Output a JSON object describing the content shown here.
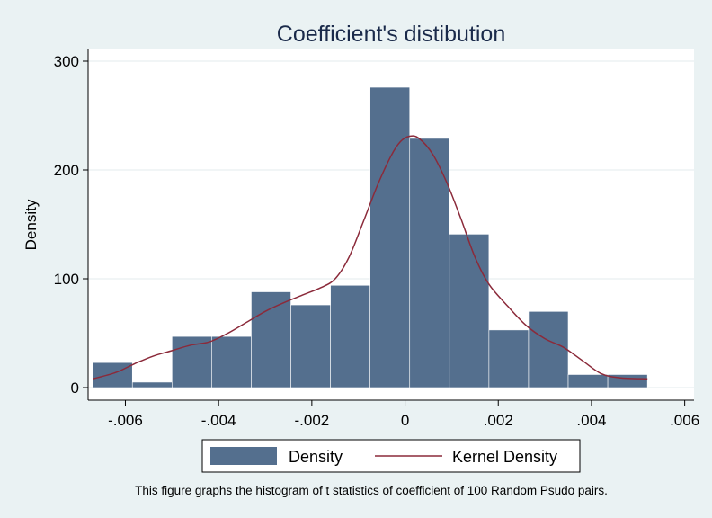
{
  "chart_data": {
    "type": "bar",
    "title": "Coefficient's distibution",
    "ylabel": "Density",
    "xlabel": "",
    "xlim": [
      -0.0068,
      0.0062
    ],
    "ylim": [
      0,
      300
    ],
    "x_ticks": [
      -0.006,
      -0.004,
      -0.002,
      0,
      0.002,
      0.004,
      0.006
    ],
    "x_tick_labels": [
      "-.006",
      "-.004",
      "-.002",
      "0",
      ".002",
      ".004",
      ".006"
    ],
    "y_ticks": [
      0,
      100,
      200,
      300
    ],
    "y_tick_labels": [
      "0",
      "100",
      "200",
      "300"
    ],
    "grid": "horizontal",
    "legend": {
      "placement": "bottom",
      "entries": [
        "Density",
        "Kernel Density"
      ]
    },
    "colors": {
      "bars": "#546f8e",
      "kernel": "#8b2a3a",
      "background": "#eaf2f3",
      "plot": "#ffffff"
    },
    "series": [
      {
        "name": "Density",
        "type": "histogram",
        "bins": [
          {
            "x0": -0.0067,
            "x1": -0.00585,
            "value": 23
          },
          {
            "x0": -0.00585,
            "x1": -0.005,
            "value": 5
          },
          {
            "x0": -0.005,
            "x1": -0.00415,
            "value": 47
          },
          {
            "x0": -0.00415,
            "x1": -0.0033,
            "value": 47
          },
          {
            "x0": -0.0033,
            "x1": -0.00245,
            "value": 88
          },
          {
            "x0": -0.00245,
            "x1": -0.0016,
            "value": 76
          },
          {
            "x0": -0.0016,
            "x1": -0.00075,
            "value": 94
          },
          {
            "x0": -0.00075,
            "x1": 0.0001,
            "value": 276
          },
          {
            "x0": 0.0001,
            "x1": 0.00095,
            "value": 229
          },
          {
            "x0": 0.00095,
            "x1": 0.0018,
            "value": 141
          },
          {
            "x0": 0.0018,
            "x1": 0.00265,
            "value": 53
          },
          {
            "x0": 0.00265,
            "x1": 0.0035,
            "value": 70
          },
          {
            "x0": 0.0035,
            "x1": 0.00435,
            "value": 12
          },
          {
            "x0": 0.00435,
            "x1": 0.0052,
            "value": 12
          }
        ]
      },
      {
        "name": "Kernel Density",
        "type": "line",
        "points": [
          [
            -0.0067,
            8
          ],
          [
            -0.0062,
            14
          ],
          [
            -0.0058,
            22
          ],
          [
            -0.0054,
            29
          ],
          [
            -0.005,
            34
          ],
          [
            -0.0046,
            39
          ],
          [
            -0.0042,
            42
          ],
          [
            -0.0038,
            50
          ],
          [
            -0.0034,
            60
          ],
          [
            -0.003,
            70
          ],
          [
            -0.0026,
            78
          ],
          [
            -0.0022,
            85
          ],
          [
            -0.0018,
            92
          ],
          [
            -0.0015,
            100
          ],
          [
            -0.0012,
            120
          ],
          [
            -0.0009,
            152
          ],
          [
            -0.0006,
            185
          ],
          [
            -0.0003,
            213
          ],
          [
            -0.0001,
            226
          ],
          [
            0.0001,
            231
          ],
          [
            0.0003,
            229
          ],
          [
            0.0006,
            214
          ],
          [
            0.0009,
            188
          ],
          [
            0.0012,
            155
          ],
          [
            0.0015,
            120
          ],
          [
            0.0018,
            95
          ],
          [
            0.0022,
            75
          ],
          [
            0.0026,
            57
          ],
          [
            0.003,
            45
          ],
          [
            0.0034,
            37
          ],
          [
            0.0038,
            25
          ],
          [
            0.0042,
            13
          ],
          [
            0.0046,
            9
          ],
          [
            0.0052,
            8
          ]
        ]
      }
    ],
    "note": "This figure graphs the histogram of t statistics of coefficient of 100 Random Psudo pairs."
  }
}
